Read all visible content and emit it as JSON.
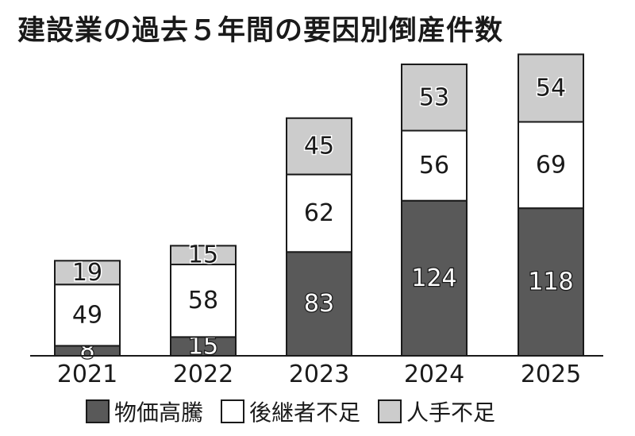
{
  "title": "建設業の過去５年間の要因別倒産件数",
  "colors": {
    "物価高騰": "#595959",
    "後継者不足": "#ffffff",
    "人手不足": "#cccccc",
    "outline": "#1a1a1a"
  },
  "chart_data": {
    "type": "bar",
    "stacked": true,
    "title": "建設業の過去５年間の要因別倒産件数",
    "categories": [
      "2021",
      "2022",
      "2023",
      "2024",
      "2025"
    ],
    "series": [
      {
        "name": "物価高騰",
        "values": [
          8,
          15,
          83,
          124,
          118
        ]
      },
      {
        "name": "後継者不足",
        "values": [
          49,
          58,
          62,
          56,
          69
        ]
      },
      {
        "name": "人手不足",
        "values": [
          19,
          15,
          45,
          53,
          54
        ]
      }
    ],
    "ylim": [
      0,
      230
    ],
    "grid": false,
    "legend_position": "bottom",
    "data_labels": true
  }
}
